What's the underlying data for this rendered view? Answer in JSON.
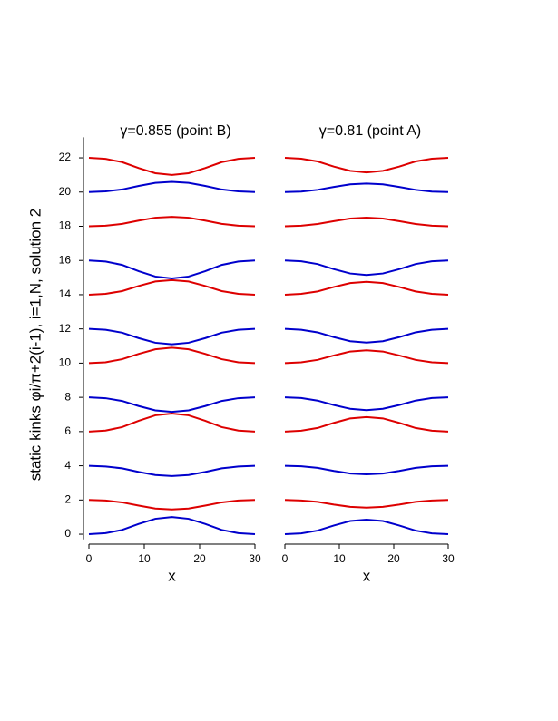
{
  "chart_data": [
    {
      "type": "line",
      "title": "γ=0.855 (point B)",
      "x_label": "x",
      "y_label": "static kinks φi/π+2(i-1), i=1,N,  solution 2",
      "x": [
        0,
        3,
        6,
        9,
        12,
        15,
        18,
        21,
        24,
        27,
        30
      ],
      "xlim": [
        0,
        30
      ],
      "xticks": [
        0,
        10,
        20,
        30
      ],
      "ylim": [
        -0.3,
        23.2
      ],
      "yticks": [
        0,
        2,
        4,
        6,
        8,
        10,
        12,
        14,
        16,
        18,
        20,
        22
      ],
      "series": [
        {
          "color": "#0000cc",
          "values": [
            0,
            0.06,
            0.25,
            0.6,
            0.9,
            1,
            0.9,
            0.6,
            0.25,
            0.06,
            0
          ]
        },
        {
          "color": "#dd0000",
          "values": [
            2,
            1.97,
            1.86,
            1.67,
            1.5,
            1.45,
            1.5,
            1.67,
            1.86,
            1.97,
            2
          ]
        },
        {
          "color": "#0000cc",
          "values": [
            4,
            3.96,
            3.85,
            3.64,
            3.46,
            3.4,
            3.46,
            3.64,
            3.85,
            3.96,
            4
          ]
        },
        {
          "color": "#dd0000",
          "values": [
            6,
            6.06,
            6.26,
            6.63,
            6.95,
            7.05,
            6.95,
            6.63,
            6.26,
            6.06,
            6
          ]
        },
        {
          "color": "#0000cc",
          "values": [
            8,
            7.95,
            7.79,
            7.49,
            7.24,
            7.15,
            7.24,
            7.49,
            7.79,
            7.95,
            8
          ]
        },
        {
          "color": "#dd0000",
          "values": [
            10,
            10.05,
            10.23,
            10.54,
            10.81,
            10.9,
            10.81,
            10.54,
            10.23,
            10.05,
            10
          ]
        },
        {
          "color": "#0000cc",
          "values": [
            12,
            11.95,
            11.78,
            11.46,
            11.19,
            11.1,
            11.19,
            11.46,
            11.78,
            11.95,
            12
          ]
        },
        {
          "color": "#dd0000",
          "values": [
            14,
            14.05,
            14.21,
            14.51,
            14.77,
            14.85,
            14.77,
            14.51,
            14.21,
            14.05,
            14
          ]
        },
        {
          "color": "#0000cc",
          "values": [
            16,
            15.94,
            15.74,
            15.37,
            15.06,
            14.95,
            15.06,
            15.37,
            15.74,
            15.94,
            16
          ]
        },
        {
          "color": "#dd0000",
          "values": [
            18,
            18.03,
            18.14,
            18.33,
            18.5,
            18.55,
            18.5,
            18.33,
            18.14,
            18.03,
            18
          ]
        },
        {
          "color": "#0000cc",
          "values": [
            20,
            20.04,
            20.15,
            20.36,
            20.54,
            20.6,
            20.54,
            20.36,
            20.15,
            20.04,
            20
          ]
        },
        {
          "color": "#dd0000",
          "values": [
            22,
            21.94,
            21.75,
            21.4,
            21.1,
            21,
            21.1,
            21.4,
            21.75,
            21.94,
            22
          ]
        }
      ]
    },
    {
      "type": "line",
      "title": "γ=0.81 (point A)",
      "x_label": "x",
      "x": [
        0,
        3,
        6,
        9,
        12,
        15,
        18,
        21,
        24,
        27,
        30
      ],
      "xlim": [
        0,
        30
      ],
      "xticks": [
        0,
        10,
        20,
        30
      ],
      "ylim": [
        -0.3,
        23.2
      ],
      "series": [
        {
          "color": "#0000cc",
          "values": [
            0,
            0.05,
            0.21,
            0.51,
            0.77,
            0.85,
            0.77,
            0.51,
            0.21,
            0.05,
            0
          ]
        },
        {
          "color": "#dd0000",
          "values": [
            2,
            1.97,
            1.89,
            1.73,
            1.6,
            1.55,
            1.6,
            1.73,
            1.89,
            1.97,
            2
          ]
        },
        {
          "color": "#0000cc",
          "values": [
            4,
            3.97,
            3.88,
            3.7,
            3.55,
            3.5,
            3.55,
            3.7,
            3.88,
            3.97,
            4
          ]
        },
        {
          "color": "#dd0000",
          "values": [
            6,
            6.05,
            6.21,
            6.51,
            6.77,
            6.85,
            6.77,
            6.51,
            6.21,
            6.05,
            6
          ]
        },
        {
          "color": "#0000cc",
          "values": [
            8,
            7.96,
            7.81,
            7.55,
            7.33,
            7.25,
            7.33,
            7.55,
            7.81,
            7.96,
            8
          ]
        },
        {
          "color": "#dd0000",
          "values": [
            10,
            10.05,
            10.19,
            10.45,
            10.68,
            10.75,
            10.68,
            10.45,
            10.19,
            10.05,
            10
          ]
        },
        {
          "color": "#0000cc",
          "values": [
            12,
            11.95,
            11.8,
            11.52,
            11.28,
            11.2,
            11.28,
            11.52,
            11.8,
            11.95,
            12
          ]
        },
        {
          "color": "#dd0000",
          "values": [
            14,
            14.05,
            14.19,
            14.45,
            14.68,
            14.75,
            14.68,
            14.45,
            14.19,
            14.05,
            14
          ]
        },
        {
          "color": "#0000cc",
          "values": [
            16,
            15.95,
            15.79,
            15.49,
            15.24,
            15.15,
            15.24,
            15.49,
            15.79,
            15.95,
            16
          ]
        },
        {
          "color": "#dd0000",
          "values": [
            18,
            18.03,
            18.13,
            18.3,
            18.45,
            18.5,
            18.45,
            18.3,
            18.13,
            18.03,
            18
          ]
        },
        {
          "color": "#0000cc",
          "values": [
            20,
            20.03,
            20.13,
            20.3,
            20.45,
            20.5,
            20.45,
            20.3,
            20.13,
            20.03,
            20
          ]
        },
        {
          "color": "#dd0000",
          "values": [
            22,
            21.95,
            21.79,
            21.49,
            21.24,
            21.15,
            21.24,
            21.49,
            21.79,
            21.95,
            22
          ]
        }
      ]
    }
  ]
}
